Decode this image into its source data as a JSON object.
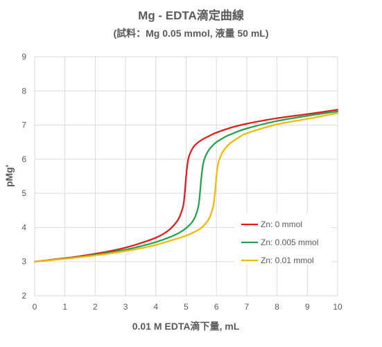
{
  "chart_data": {
    "type": "line",
    "title": "Mg - EDTA滴定曲線",
    "subtitle": "(試料：Mg 0.05 mmol, 液量 50 mL)",
    "xlabel": "0.01 M EDTA滴下量, mL",
    "ylabel": "pMg'",
    "xlim": [
      0,
      10
    ],
    "ylim": [
      2,
      9
    ],
    "xticks": [
      "0",
      "1",
      "2",
      "3",
      "4",
      "5",
      "6",
      "7",
      "8",
      "9",
      "10"
    ],
    "yticks": [
      "2",
      "3",
      "4",
      "5",
      "6",
      "7",
      "8",
      "9"
    ],
    "grid": true,
    "legend_position": "center-right",
    "series": [
      {
        "name": "Zn:  0 mmol",
        "color": "#e31a1c",
        "x": [
          0,
          0.5,
          1,
          1.5,
          2,
          2.5,
          3,
          3.5,
          4,
          4.3,
          4.5,
          4.7,
          4.8,
          4.9,
          4.95,
          5.0,
          5.05,
          5.1,
          5.2,
          5.3,
          5.5,
          5.8,
          6,
          6.5,
          7,
          8,
          9,
          10
        ],
        "y": [
          3.0,
          3.05,
          3.1,
          3.16,
          3.23,
          3.31,
          3.41,
          3.54,
          3.7,
          3.84,
          3.98,
          4.18,
          4.35,
          4.62,
          4.95,
          5.5,
          5.9,
          6.1,
          6.3,
          6.42,
          6.56,
          6.7,
          6.78,
          6.93,
          7.04,
          7.2,
          7.32,
          7.45
        ]
      },
      {
        "name": "Zn: 0.005 mmol",
        "color": "#1fa34a",
        "x": [
          0,
          0.5,
          1,
          1.5,
          2,
          2.5,
          3,
          3.5,
          4,
          4.5,
          4.8,
          5.0,
          5.2,
          5.3,
          5.4,
          5.45,
          5.5,
          5.55,
          5.6,
          5.7,
          5.8,
          6.0,
          6.3,
          6.5,
          7,
          8,
          9,
          10
        ],
        "y": [
          3.0,
          3.04,
          3.09,
          3.14,
          3.2,
          3.27,
          3.35,
          3.45,
          3.57,
          3.73,
          3.86,
          3.98,
          4.16,
          4.32,
          4.6,
          4.95,
          5.45,
          5.8,
          6.0,
          6.2,
          6.33,
          6.5,
          6.66,
          6.74,
          6.9,
          7.12,
          7.27,
          7.4
        ]
      },
      {
        "name": "Zn:  0.01 mmol",
        "color": "#f5b800",
        "x": [
          0,
          0.5,
          1,
          1.5,
          2,
          2.5,
          3,
          3.5,
          4,
          4.5,
          5.0,
          5.3,
          5.5,
          5.7,
          5.8,
          5.9,
          5.95,
          6.0,
          6.05,
          6.1,
          6.2,
          6.3,
          6.5,
          6.8,
          7,
          8,
          9,
          10
        ],
        "y": [
          3.0,
          3.04,
          3.08,
          3.13,
          3.18,
          3.24,
          3.31,
          3.39,
          3.49,
          3.62,
          3.76,
          3.88,
          3.99,
          4.18,
          4.35,
          4.65,
          5.0,
          5.5,
          5.85,
          6.0,
          6.2,
          6.33,
          6.5,
          6.67,
          6.76,
          7.02,
          7.18,
          7.35
        ]
      }
    ]
  }
}
